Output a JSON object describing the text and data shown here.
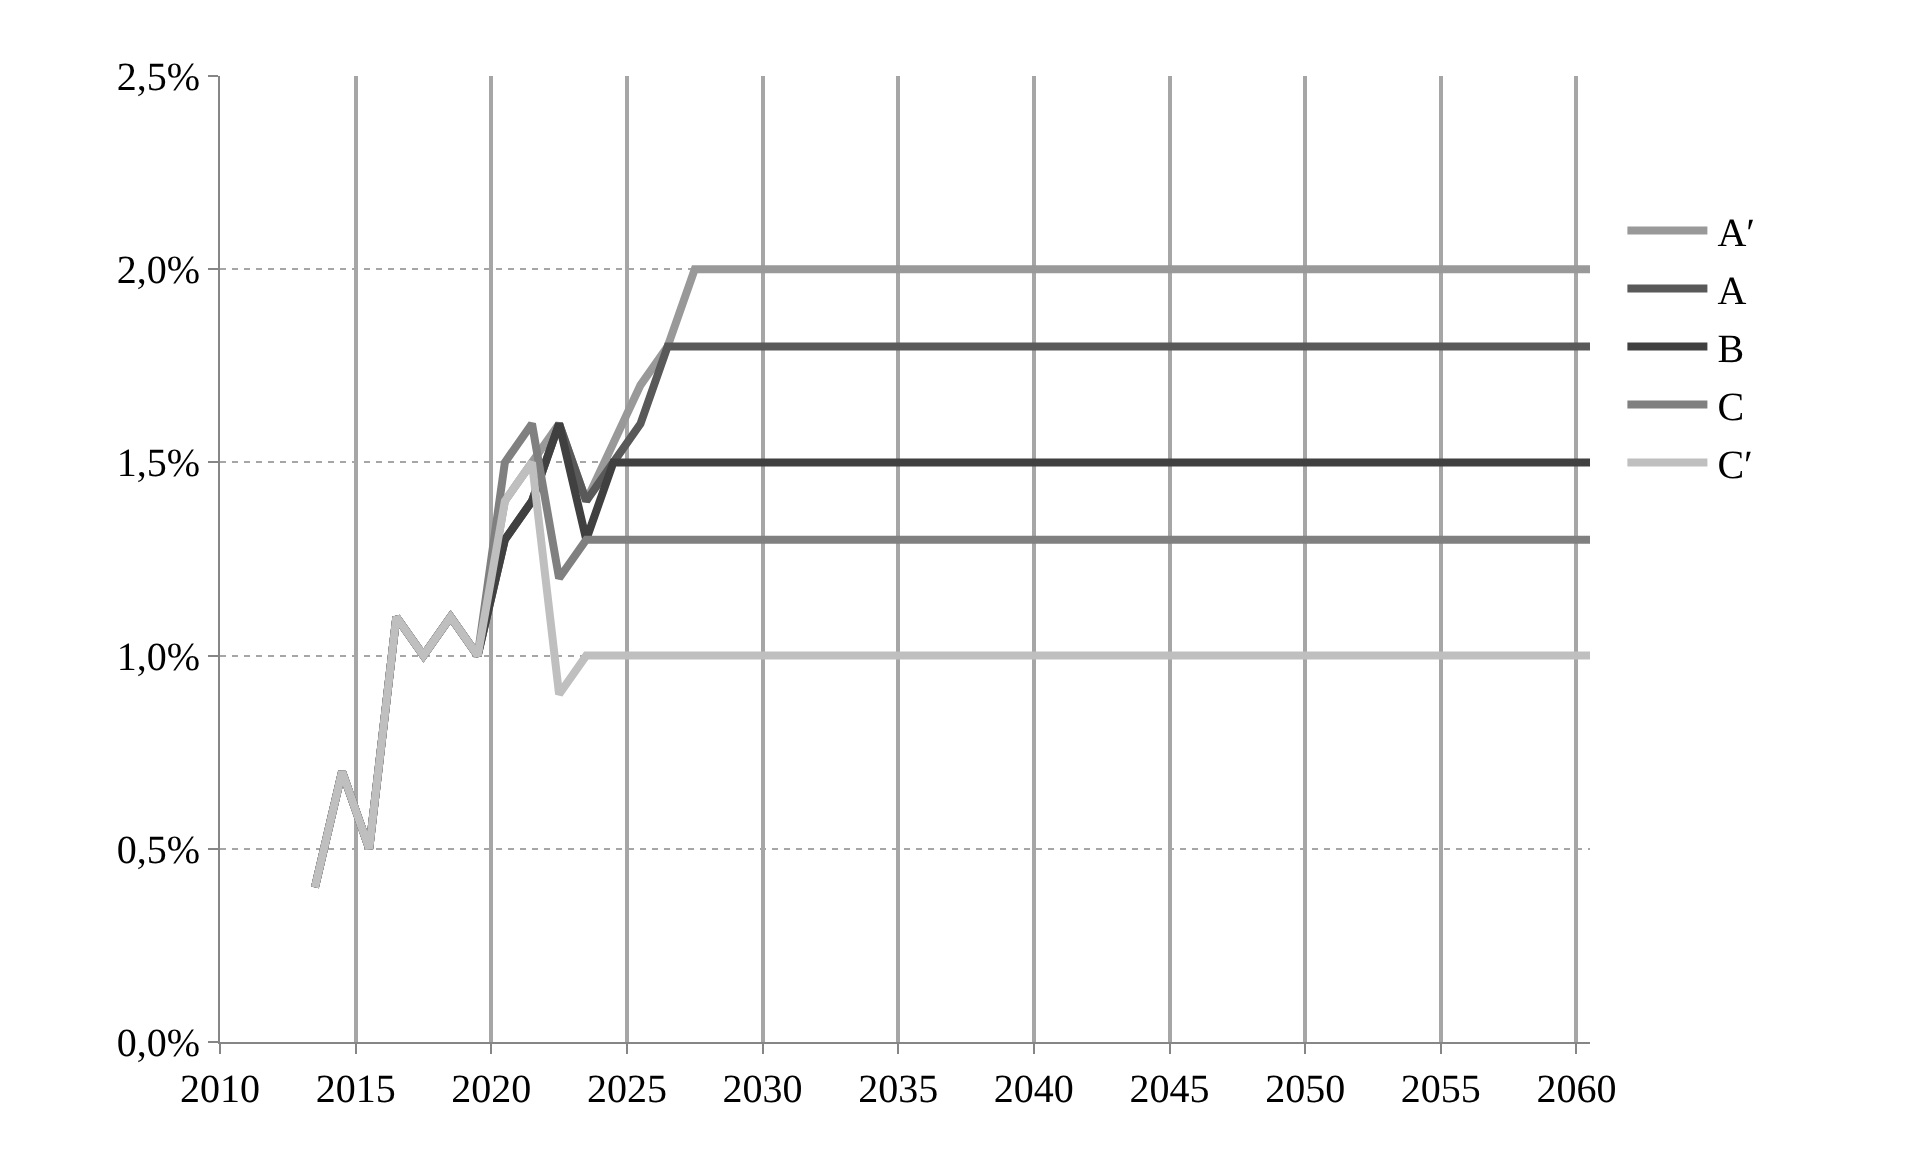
{
  "chart_data": {
    "type": "line",
    "x": [
      2013.5,
      2014.5,
      2015.5,
      2016.5,
      2017.5,
      2018.5,
      2019.5,
      2020.5,
      2021.5,
      2022.5,
      2023.5,
      2024.5,
      2025.5,
      2026.5,
      2027.5,
      2028.5,
      2029.5,
      2030.5,
      2031.5,
      2032.5,
      2033.5,
      2034.5,
      2035.5,
      2036.5,
      2037.5,
      2038.5,
      2039.5,
      2040.5,
      2041.5,
      2042.5,
      2043.5,
      2044.5,
      2045.5,
      2046.5,
      2047.5,
      2048.5,
      2049.5,
      2050.5,
      2051.5,
      2052.5,
      2053.5,
      2054.5,
      2055.5,
      2056.5,
      2057.5,
      2058.5,
      2059.5,
      2060.5
    ],
    "series": [
      {
        "name": "A′",
        "color": "#999999",
        "values": [
          0.4,
          0.7,
          0.5,
          1.1,
          1.0,
          1.1,
          1.0,
          1.4,
          1.5,
          1.6,
          1.4,
          1.55,
          1.7,
          1.8,
          2.0,
          2.0,
          2.0,
          2.0,
          2.0,
          2.0,
          2.0,
          2.0,
          2.0,
          2.0,
          2.0,
          2.0,
          2.0,
          2.0,
          2.0,
          2.0,
          2.0,
          2.0,
          2.0,
          2.0,
          2.0,
          2.0,
          2.0,
          2.0,
          2.0,
          2.0,
          2.0,
          2.0,
          2.0,
          2.0,
          2.0,
          2.0,
          2.0,
          2.0
        ]
      },
      {
        "name": "A",
        "color": "#595959",
        "values": [
          0.4,
          0.7,
          0.5,
          1.1,
          1.0,
          1.1,
          1.0,
          1.3,
          1.4,
          1.6,
          1.4,
          1.5,
          1.6,
          1.8,
          1.8,
          1.8,
          1.8,
          1.8,
          1.8,
          1.8,
          1.8,
          1.8,
          1.8,
          1.8,
          1.8,
          1.8,
          1.8,
          1.8,
          1.8,
          1.8,
          1.8,
          1.8,
          1.8,
          1.8,
          1.8,
          1.8,
          1.8,
          1.8,
          1.8,
          1.8,
          1.8,
          1.8,
          1.8,
          1.8,
          1.8,
          1.8,
          1.8,
          1.8
        ]
      },
      {
        "name": "B",
        "color": "#404040",
        "values": [
          0.4,
          0.7,
          0.5,
          1.1,
          1.0,
          1.1,
          1.0,
          1.3,
          1.4,
          1.6,
          1.3,
          1.5,
          1.5,
          1.5,
          1.5,
          1.5,
          1.5,
          1.5,
          1.5,
          1.5,
          1.5,
          1.5,
          1.5,
          1.5,
          1.5,
          1.5,
          1.5,
          1.5,
          1.5,
          1.5,
          1.5,
          1.5,
          1.5,
          1.5,
          1.5,
          1.5,
          1.5,
          1.5,
          1.5,
          1.5,
          1.5,
          1.5,
          1.5,
          1.5,
          1.5,
          1.5,
          1.5,
          1.5
        ]
      },
      {
        "name": "C",
        "color": "#808080",
        "values": [
          0.4,
          0.7,
          0.5,
          1.1,
          1.0,
          1.1,
          1.0,
          1.5,
          1.6,
          1.2,
          1.3,
          1.3,
          1.3,
          1.3,
          1.3,
          1.3,
          1.3,
          1.3,
          1.3,
          1.3,
          1.3,
          1.3,
          1.3,
          1.3,
          1.3,
          1.3,
          1.3,
          1.3,
          1.3,
          1.3,
          1.3,
          1.3,
          1.3,
          1.3,
          1.3,
          1.3,
          1.3,
          1.3,
          1.3,
          1.3,
          1.3,
          1.3,
          1.3,
          1.3,
          1.3,
          1.3,
          1.3,
          1.3
        ]
      },
      {
        "name": "C′",
        "color": "#bfbfbf",
        "values": [
          0.4,
          0.7,
          0.5,
          1.1,
          1.0,
          1.1,
          1.0,
          1.4,
          1.5,
          0.9,
          1.0,
          1.0,
          1.0,
          1.0,
          1.0,
          1.0,
          1.0,
          1.0,
          1.0,
          1.0,
          1.0,
          1.0,
          1.0,
          1.0,
          1.0,
          1.0,
          1.0,
          1.0,
          1.0,
          1.0,
          1.0,
          1.0,
          1.0,
          1.0,
          1.0,
          1.0,
          1.0,
          1.0,
          1.0,
          1.0,
          1.0,
          1.0,
          1.0,
          1.0,
          1.0,
          1.0,
          1.0,
          1.0
        ]
      }
    ],
    "xlim": [
      2010,
      2060.5
    ],
    "xticks": [
      2010,
      2015,
      2020,
      2025,
      2030,
      2035,
      2040,
      2045,
      2050,
      2055,
      2060
    ],
    "ylim": [
      0,
      2.5
    ],
    "yticks": [
      {
        "value": 0,
        "label": "0,0%"
      },
      {
        "value": 0.5,
        "label": "0,5%"
      },
      {
        "value": 1.0,
        "label": "1,0%"
      },
      {
        "value": 1.5,
        "label": "1,5%"
      },
      {
        "value": 2.0,
        "label": "2,0%"
      },
      {
        "value": 2.5,
        "label": "2,5%"
      }
    ],
    "grid": true,
    "legend": "right",
    "marker": "none",
    "line_style": "solid"
  }
}
